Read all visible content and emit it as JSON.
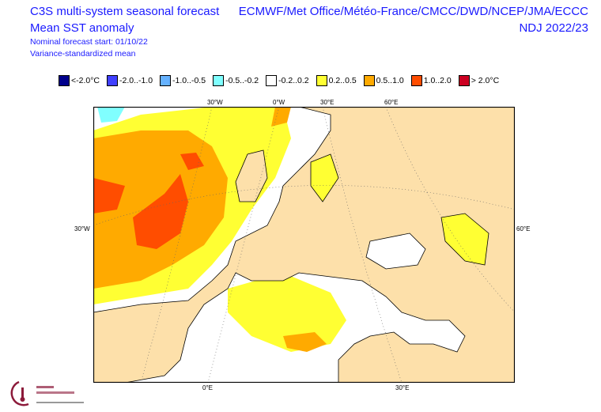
{
  "header": {
    "title": "C3S multi-system seasonal forecast",
    "subtitle": "Mean SST anomaly",
    "forecast_start": "Nominal forecast start: 01/10/22",
    "method": "Variance-standardized mean",
    "centres": "ECMWF/Met Office/Météo-France/CMCC/DWD/NCEP/JMA/ECCC",
    "period": "NDJ 2022/23"
  },
  "legend": [
    {
      "label": "<-2.0°C",
      "color": "#00008c"
    },
    {
      "label": "-2.0..-1.0",
      "color": "#4040ff"
    },
    {
      "label": "-1.0..-0.5",
      "color": "#66b2ff"
    },
    {
      "label": "-0.5..-0.2",
      "color": "#80ffff"
    },
    {
      "label": "-0.2..0.2",
      "color": "#ffffff"
    },
    {
      "label": "0.2..0.5",
      "color": "#ffff33"
    },
    {
      "label": "0.5..1.0",
      "color": "#ffaa00"
    },
    {
      "label": "1.0..2.0",
      "color": "#ff4d00"
    },
    {
      "label": "> 2.0°C",
      "color": "#cc0022"
    }
  ],
  "axes": {
    "top": [
      "30°W",
      "0°W",
      "30°E",
      "60°E"
    ],
    "left": [
      "30°W"
    ],
    "right": [
      "60°E"
    ],
    "bottom": [
      "0°E",
      "30°E"
    ]
  },
  "land_color": "#fde0aa",
  "logo": {
    "name": "Climate Change Service",
    "url": "climate.copernicus.eu"
  }
}
